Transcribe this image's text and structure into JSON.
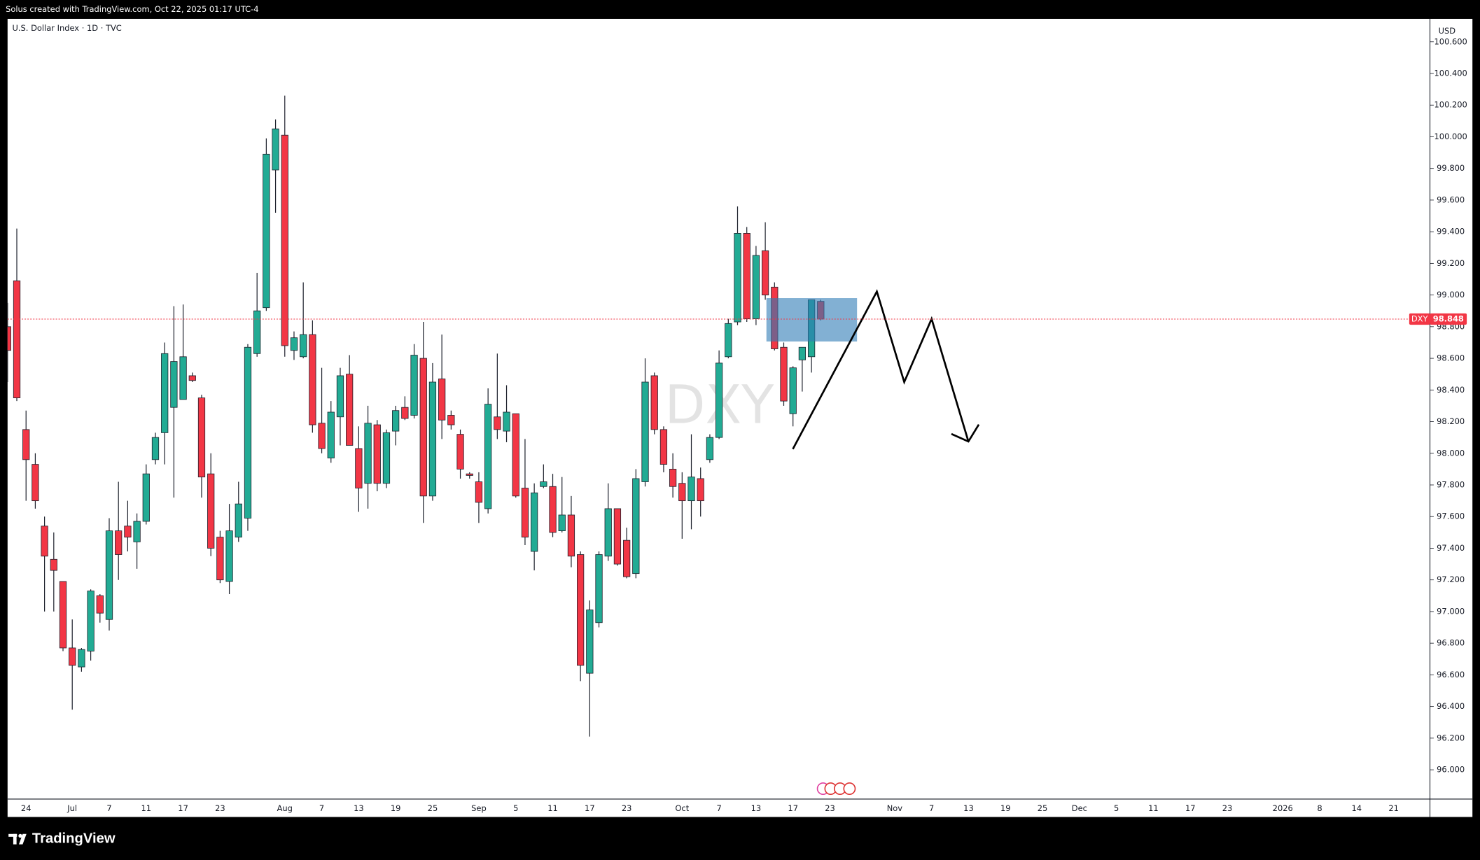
{
  "header": {
    "credit": "Solus created with TradingView.com, Oct 22, 2025 01:17 UTC-4",
    "symbol_line": "U.S. Dollar Index · 1D · TVC",
    "currency": "USD"
  },
  "footer": {
    "brand": "TradingView"
  },
  "chart_data": {
    "type": "candlestick",
    "symbol": "DXY",
    "categories": [
      null,
      null,
      "24",
      null,
      null,
      null,
      null,
      "Jul",
      null,
      null,
      null,
      "7",
      null,
      null,
      null,
      "11",
      null,
      null,
      null,
      "17",
      null,
      null,
      null,
      "23",
      null,
      null,
      null,
      null,
      null,
      null,
      "Aug",
      null,
      null,
      null,
      "7",
      null,
      null,
      null,
      "13",
      null,
      null,
      null,
      "19",
      null,
      null,
      null,
      "25",
      null,
      null,
      null,
      null,
      "Sep",
      null,
      null,
      null,
      "5",
      null,
      null,
      null,
      "11",
      null,
      null,
      null,
      "17",
      null,
      null,
      null,
      "23",
      null,
      null,
      null,
      null,
      null,
      "Oct",
      null,
      null,
      null,
      "7",
      null,
      null,
      null,
      "13",
      null,
      null,
      null,
      "17",
      null,
      null,
      null,
      "23",
      null,
      null,
      null,
      null,
      null,
      null,
      "Nov",
      null,
      null,
      null,
      "7",
      null,
      null,
      null,
      "13",
      null,
      null,
      null,
      "19",
      null,
      null,
      null,
      "25",
      null,
      null,
      null,
      "Dec",
      null,
      null,
      null,
      "5",
      null,
      null,
      null,
      "11",
      null,
      null,
      null,
      "17",
      null,
      null,
      null,
      "23",
      null,
      null,
      null,
      null,
      null,
      "2026",
      null,
      null,
      null,
      "8",
      null,
      null,
      null,
      "14",
      null,
      null,
      null,
      "21"
    ],
    "open": [
      98.8,
      99.09,
      98.15,
      97.93,
      97.54,
      97.33,
      97.19,
      96.77,
      96.65,
      96.75,
      97.1,
      96.95,
      97.51,
      97.54,
      97.44,
      97.57,
      97.96,
      98.13,
      98.29,
      98.34,
      98.49,
      98.35,
      97.87,
      97.47,
      97.19,
      97.47,
      97.59,
      98.63,
      98.92,
      99.79,
      100.01,
      98.65,
      98.61,
      98.75,
      98.19,
      97.97,
      98.23,
      98.5,
      98.03,
      97.81,
      98.18,
      97.81,
      98.14,
      98.29,
      98.24,
      98.6,
      97.73,
      98.47,
      98.24,
      98.12,
      97.87,
      97.82,
      97.65,
      98.23,
      98.14,
      98.25,
      97.78,
      97.38,
      97.79,
      97.79,
      97.51,
      97.61,
      97.36,
      96.61,
      96.93,
      97.35,
      97.65,
      97.45,
      97.24,
      97.82,
      98.49,
      98.15,
      97.9,
      97.81,
      97.7,
      97.84,
      97.96,
      98.1,
      98.61,
      98.83,
      99.39,
      98.85,
      99.28,
      99.05,
      98.67,
      98.25,
      98.59,
      98.61,
      98.96,
      null,
      null,
      null,
      null,
      null,
      null,
      null,
      null,
      null,
      null,
      null,
      null,
      null,
      null,
      null,
      null,
      null,
      null,
      null,
      null,
      null,
      null,
      null,
      null,
      null,
      null,
      null,
      null,
      null,
      null,
      null,
      null,
      null,
      null,
      null,
      null,
      null,
      null,
      null,
      null,
      null,
      null,
      null,
      null,
      null,
      null,
      null,
      null,
      null,
      null,
      null,
      null,
      null,
      null,
      null,
      null,
      null,
      null,
      null,
      null,
      null,
      null
    ],
    "high": [
      98.95,
      99.42,
      98.27,
      98.0,
      97.6,
      97.5,
      97.19,
      96.95,
      96.77,
      97.14,
      97.11,
      97.59,
      97.82,
      97.7,
      97.62,
      97.93,
      98.13,
      98.7,
      98.93,
      98.94,
      98.51,
      98.37,
      98.0,
      97.51,
      97.68,
      97.82,
      98.69,
      99.14,
      99.99,
      100.11,
      100.26,
      98.77,
      99.08,
      98.84,
      98.54,
      98.33,
      98.54,
      98.62,
      98.17,
      98.3,
      98.21,
      98.15,
      98.3,
      98.36,
      98.69,
      98.83,
      98.57,
      98.75,
      98.27,
      98.15,
      97.88,
      97.88,
      98.41,
      98.63,
      98.43,
      98.25,
      98.09,
      97.81,
      97.93,
      97.87,
      97.85,
      97.73,
      97.38,
      97.07,
      97.38,
      97.81,
      97.65,
      97.53,
      97.9,
      98.6,
      98.51,
      98.17,
      98.0,
      97.88,
      98.12,
      97.91,
      98.12,
      98.65,
      98.85,
      99.56,
      99.43,
      99.31,
      99.46,
      99.08,
      98.7,
      98.55,
      98.67,
      98.97,
      98.97,
      null,
      null,
      null,
      null,
      null,
      null,
      null,
      null,
      null,
      null,
      null,
      null,
      null,
      null,
      null,
      null,
      null,
      null,
      null,
      null,
      null,
      null,
      null,
      null,
      null,
      null,
      null,
      null,
      null,
      null,
      null,
      null,
      null,
      null,
      null,
      null,
      null,
      null,
      null,
      null,
      null,
      null,
      null,
      null,
      null,
      null,
      null,
      null,
      null,
      null,
      null,
      null,
      null,
      null,
      null,
      null,
      null,
      null,
      null,
      null,
      null,
      null
    ],
    "low": [
      98.45,
      98.33,
      97.7,
      97.65,
      97.0,
      97.0,
      96.75,
      96.38,
      96.62,
      96.69,
      96.93,
      96.88,
      97.2,
      97.38,
      97.27,
      97.55,
      97.93,
      97.93,
      97.72,
      98.34,
      98.45,
      97.72,
      97.35,
      97.18,
      97.11,
      97.44,
      97.51,
      98.61,
      98.9,
      99.52,
      98.61,
      98.59,
      98.6,
      98.13,
      98.0,
      97.94,
      98.05,
      98.05,
      97.63,
      97.65,
      97.76,
      97.78,
      98.05,
      98.21,
      98.22,
      97.56,
      97.7,
      98.09,
      98.15,
      97.84,
      97.84,
      97.56,
      97.62,
      98.09,
      98.07,
      97.72,
      97.42,
      97.26,
      97.78,
      97.47,
      97.5,
      97.28,
      96.56,
      96.21,
      96.9,
      97.32,
      97.29,
      97.21,
      97.21,
      97.79,
      98.12,
      97.88,
      97.72,
      97.46,
      97.52,
      97.6,
      97.94,
      98.09,
      98.6,
      98.81,
      98.83,
      98.81,
      98.97,
      98.65,
      98.3,
      98.17,
      98.39,
      98.51,
      98.84,
      null,
      null,
      null,
      null,
      null,
      null,
      null,
      null,
      null,
      null,
      null,
      null,
      null,
      null,
      null,
      null,
      null,
      null,
      null,
      null,
      null,
      null,
      null,
      null,
      null,
      null,
      null,
      null,
      null,
      null,
      null,
      null,
      null,
      null,
      null,
      null,
      null,
      null,
      null,
      null,
      null,
      null,
      null,
      null,
      null,
      null,
      null,
      null,
      null,
      null,
      null,
      null,
      null,
      null,
      null,
      null,
      null,
      null,
      null,
      null,
      null,
      null
    ],
    "close": [
      98.65,
      98.35,
      97.96,
      97.7,
      97.35,
      97.26,
      96.77,
      96.66,
      96.76,
      97.13,
      96.99,
      97.51,
      97.36,
      97.47,
      97.57,
      97.87,
      98.1,
      98.63,
      98.58,
      98.61,
      98.46,
      97.85,
      97.4,
      97.2,
      97.51,
      97.68,
      98.67,
      98.9,
      99.89,
      100.05,
      98.68,
      98.73,
      98.75,
      98.18,
      98.03,
      98.26,
      98.49,
      98.05,
      97.78,
      98.19,
      97.81,
      98.13,
      98.27,
      98.22,
      98.62,
      97.73,
      98.45,
      98.21,
      98.18,
      97.9,
      97.86,
      97.69,
      98.31,
      98.15,
      98.26,
      97.73,
      97.47,
      97.75,
      97.82,
      97.5,
      97.61,
      97.35,
      96.66,
      97.01,
      97.36,
      97.65,
      97.3,
      97.22,
      97.84,
      98.45,
      98.15,
      97.93,
      97.79,
      97.7,
      97.85,
      97.7,
      98.1,
      98.57,
      98.82,
      99.39,
      98.85,
      99.25,
      99.0,
      98.66,
      98.33,
      98.54,
      98.67,
      98.97,
      98.848,
      null,
      null,
      null,
      null,
      null,
      null,
      null,
      null,
      null,
      null,
      null,
      null,
      null,
      null,
      null,
      null,
      null,
      null,
      null,
      null,
      null,
      null,
      null,
      null,
      null,
      null,
      null,
      null,
      null,
      null,
      null,
      null,
      null,
      null,
      null,
      null,
      null,
      null,
      null,
      null,
      null,
      null,
      null,
      null,
      null,
      null,
      null,
      null,
      null,
      null,
      null,
      null,
      null,
      null,
      null,
      null,
      null,
      null,
      null,
      null,
      null,
      null
    ],
    "up_color": "#22ab94",
    "down_color": "#f23645",
    "ylim": [
      95.827,
      100.745
    ],
    "yticks": [
      {
        "value": 96.0,
        "label": "96.000"
      },
      {
        "value": 96.2,
        "label": "96.200"
      },
      {
        "value": 96.4,
        "label": "96.400"
      },
      {
        "value": 96.6,
        "label": "96.600"
      },
      {
        "value": 96.8,
        "label": "96.800"
      },
      {
        "value": 97.0,
        "label": "97.000"
      },
      {
        "value": 97.2,
        "label": "97.200"
      },
      {
        "value": 97.4,
        "label": "97.400"
      },
      {
        "value": 97.6,
        "label": "97.600"
      },
      {
        "value": 97.8,
        "label": "97.800"
      },
      {
        "value": 98.0,
        "label": "98.000"
      },
      {
        "value": 98.2,
        "label": "98.200"
      },
      {
        "value": 98.4,
        "label": "98.400"
      },
      {
        "value": 98.6,
        "label": "98.600"
      },
      {
        "value": 98.8,
        "label": "98.800"
      },
      {
        "value": 99.0,
        "label": "99.000"
      },
      {
        "value": 99.2,
        "label": "99.200"
      },
      {
        "value": 99.4,
        "label": "99.400"
      },
      {
        "value": 99.6,
        "label": "99.600"
      },
      {
        "value": 99.8,
        "label": "99.800"
      },
      {
        "value": 100.0,
        "label": "100.000"
      },
      {
        "value": 100.2,
        "label": "100.200"
      },
      {
        "value": 100.4,
        "label": "100.400"
      },
      {
        "value": 100.6,
        "label": "100.600"
      }
    ]
  }
}
